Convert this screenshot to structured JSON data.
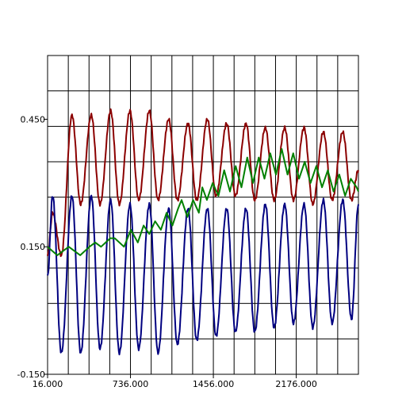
{
  "chart_data": {
    "type": "line",
    "title": "",
    "xlabel": "",
    "ylabel": "",
    "xlim": [
      16,
      2716
    ],
    "ylim": [
      -0.15,
      0.6
    ],
    "x_ticks": [
      16,
      736,
      1456,
      2176
    ],
    "x_tick_labels": [
      "16.000",
      "736.000",
      "1456.000",
      "2176.000"
    ],
    "y_ticks": [
      -0.15,
      0.15,
      0.45
    ],
    "y_tick_labels": [
      "-0.150",
      "0.150",
      "0.450"
    ],
    "grid": true,
    "legend": "none",
    "series": [
      {
        "color": "#8b0000",
        "shape": "periodic",
        "period": 168,
        "phase_x": 16,
        "peak_x": 60,
        "y_start": 0.13,
        "peaks": [
          0.23,
          0.46,
          0.46,
          0.47,
          0.47,
          0.47,
          0.45,
          0.44,
          0.45,
          0.44,
          0.44,
          0.43,
          0.43,
          0.43,
          0.42,
          0.42,
          0.42
        ],
        "troughs": [
          0.13,
          0.25,
          0.25,
          0.25,
          0.26,
          0.26,
          0.26,
          0.26,
          0.27,
          0.27,
          0.26,
          0.26,
          0.26,
          0.25,
          0.26,
          0.26,
          0.27
        ],
        "y_end": 0.33
      },
      {
        "color": "#000080",
        "shape": "periodic",
        "period": 168,
        "phase_x": 16,
        "peak_x": 60,
        "y_start": 0.08,
        "peaks": [
          0.27,
          0.27,
          0.27,
          0.26,
          0.25,
          0.25,
          0.24,
          0.24,
          0.24,
          0.24,
          0.24,
          0.25,
          0.25,
          0.25,
          0.26,
          0.26,
          0.27
        ],
        "troughs": [
          -0.1,
          -0.1,
          -0.09,
          -0.1,
          -0.09,
          -0.1,
          -0.08,
          -0.07,
          -0.06,
          -0.05,
          -0.05,
          -0.04,
          -0.03,
          -0.04,
          -0.03,
          -0.02,
          -0.01
        ],
        "y_end": 0.25
      },
      {
        "color": "#008000",
        "shape": "points",
        "x": [
          16,
          100,
          200,
          300,
          380,
          430,
          480,
          560,
          600,
          680,
          740,
          800,
          850,
          900,
          950,
          1000,
          1050,
          1100,
          1150,
          1180,
          1230,
          1280,
          1330,
          1360,
          1400,
          1450,
          1500,
          1550,
          1600,
          1650,
          1700,
          1750,
          1800,
          1850,
          1900,
          1950,
          2000,
          2050,
          2100,
          2150,
          2200,
          2250,
          2300,
          2350,
          2400,
          2450,
          2500,
          2550,
          2600,
          2650,
          2700,
          2716
        ],
        "y": [
          0.15,
          0.13,
          0.15,
          0.13,
          0.15,
          0.16,
          0.15,
          0.17,
          0.17,
          0.15,
          0.19,
          0.16,
          0.2,
          0.18,
          0.21,
          0.19,
          0.23,
          0.2,
          0.24,
          0.26,
          0.22,
          0.26,
          0.23,
          0.29,
          0.26,
          0.3,
          0.27,
          0.33,
          0.28,
          0.34,
          0.29,
          0.36,
          0.3,
          0.36,
          0.31,
          0.37,
          0.32,
          0.38,
          0.32,
          0.37,
          0.31,
          0.35,
          0.3,
          0.34,
          0.29,
          0.33,
          0.28,
          0.32,
          0.27,
          0.31,
          0.29,
          0.28
        ]
      }
    ]
  }
}
